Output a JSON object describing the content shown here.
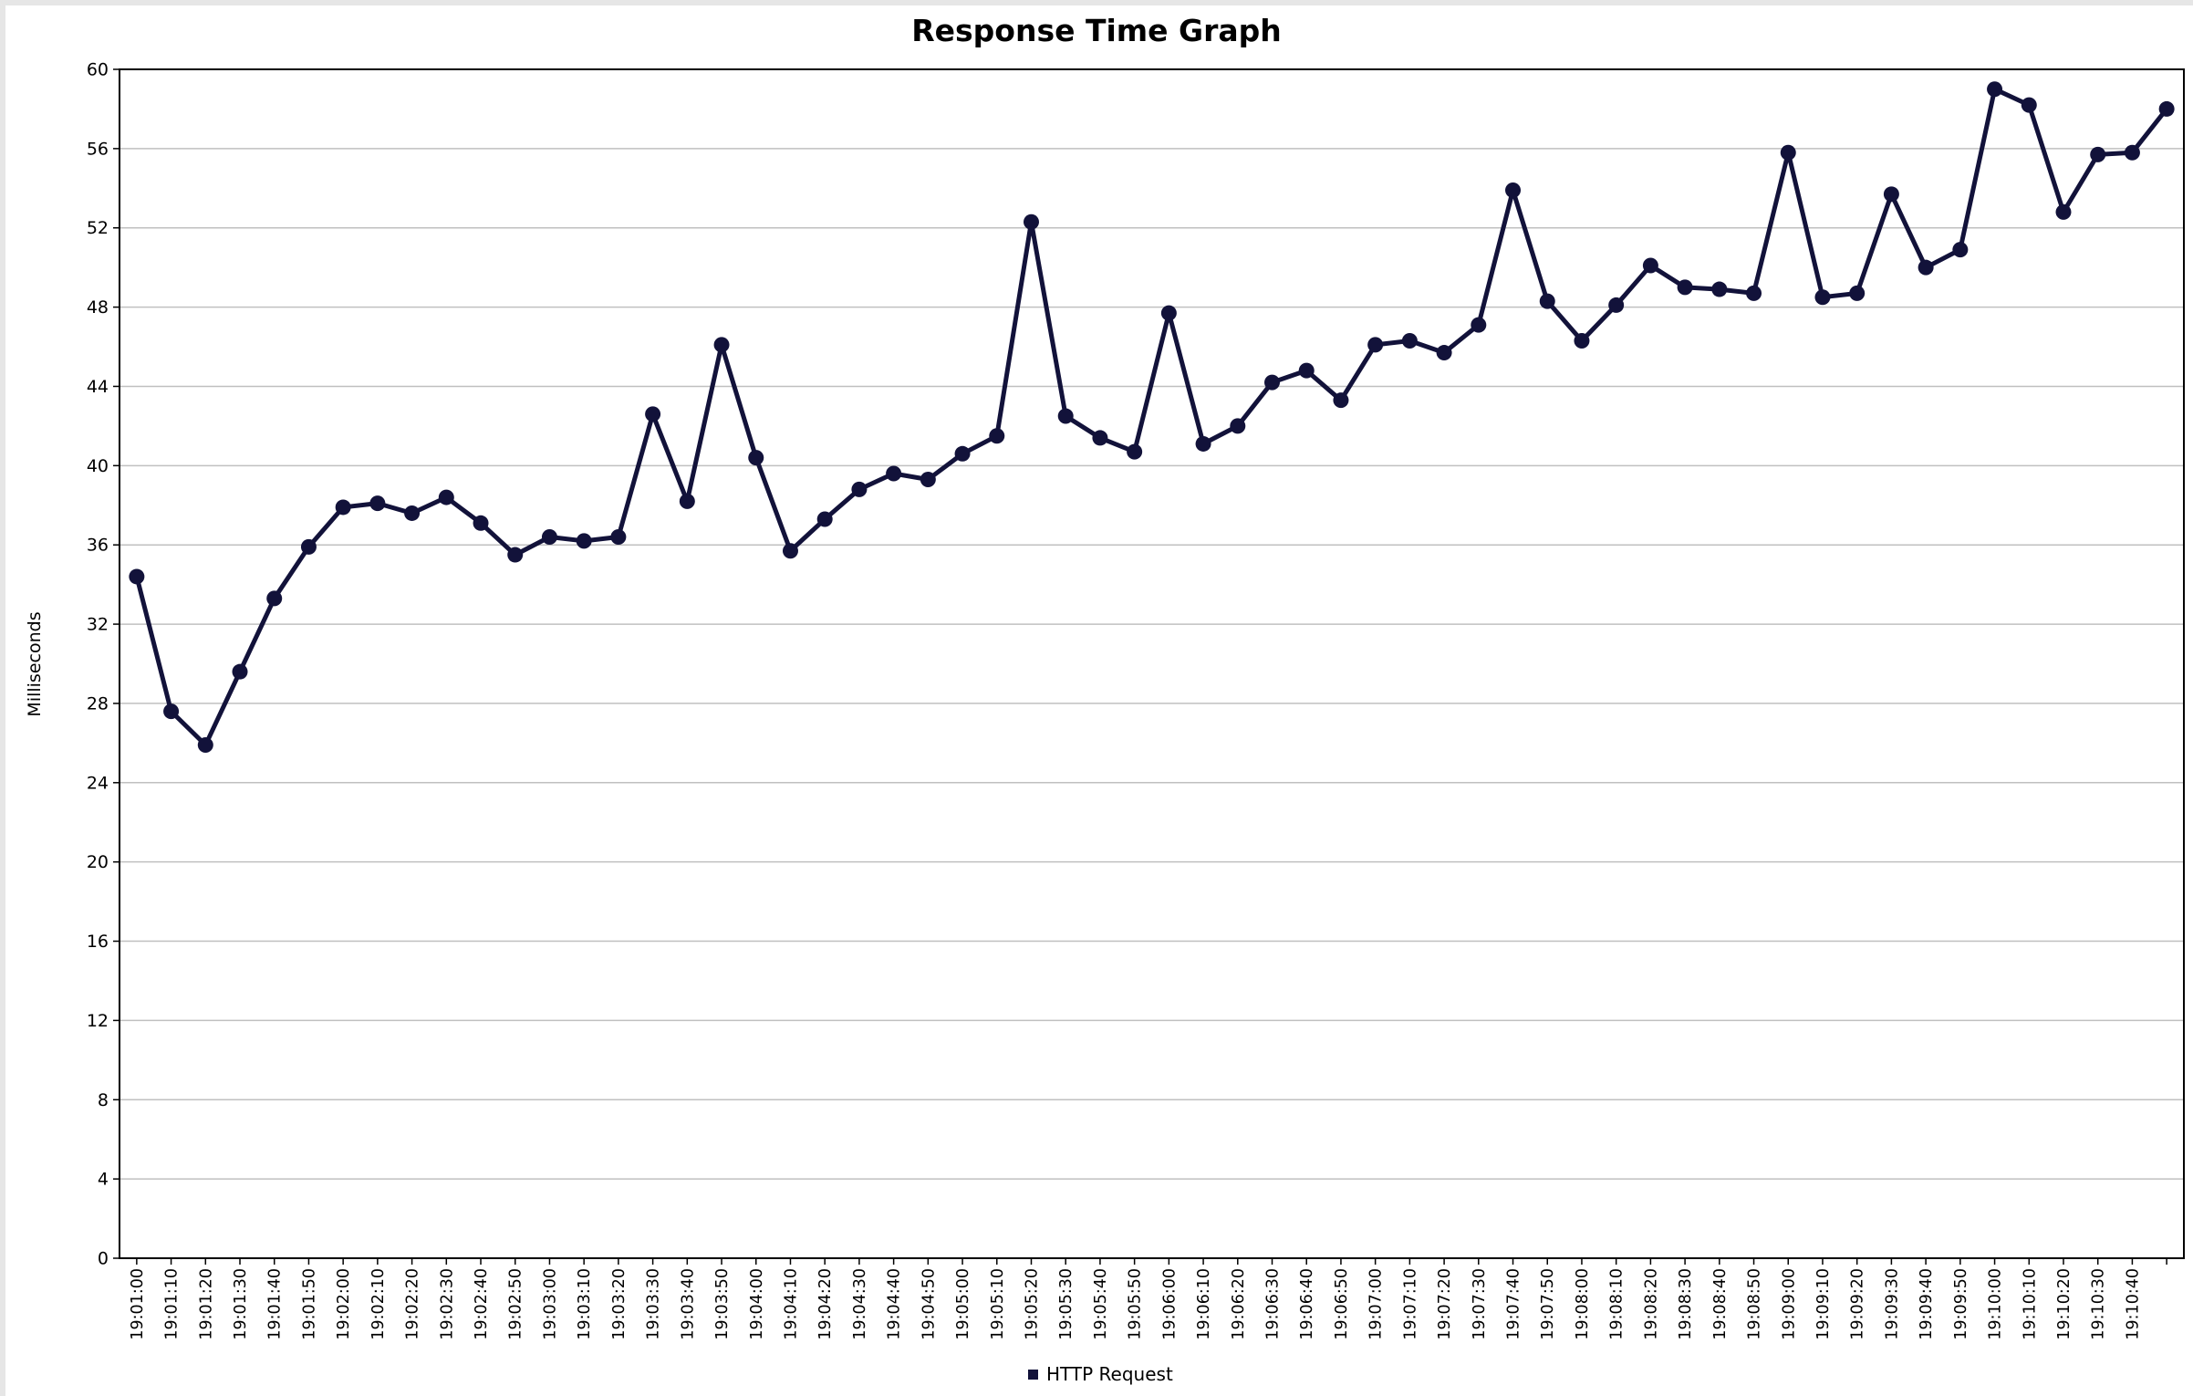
{
  "chart_data": {
    "type": "line",
    "title": "Response Time Graph",
    "xlabel": "",
    "ylabel": "Milliseconds",
    "ylim": [
      0,
      60
    ],
    "y_ticks": [
      0,
      4,
      8,
      12,
      16,
      20,
      24,
      28,
      32,
      36,
      40,
      44,
      48,
      52,
      56,
      60
    ],
    "grid": true,
    "legend_position": "bottom",
    "line_color": "#12123a",
    "categories": [
      "19:01:00",
      "19:01:10",
      "19:01:20",
      "19:01:30",
      "19:01:40",
      "19:01:50",
      "19:02:00",
      "19:02:10",
      "19:02:20",
      "19:02:30",
      "19:02:40",
      "19:02:50",
      "19:03:00",
      "19:03:10",
      "19:03:20",
      "19:03:30",
      "19:03:40",
      "19:03:50",
      "19:04:00",
      "19:04:10",
      "19:04:20",
      "19:04:30",
      "19:04:40",
      "19:04:50",
      "19:05:00",
      "19:05:10",
      "19:05:20",
      "19:05:30",
      "19:05:40",
      "19:05:50",
      "19:06:00",
      "19:06:10",
      "19:06:20",
      "19:06:30",
      "19:06:40",
      "19:06:50",
      "19:07:00",
      "19:07:10",
      "19:07:20",
      "19:07:30",
      "19:07:40",
      "19:07:50",
      "19:08:00",
      "19:08:10",
      "19:08:20",
      "19:08:30",
      "19:08:40",
      "19:08:50",
      "19:09:00",
      "19:09:10",
      "19:09:20",
      "19:09:30",
      "19:09:40",
      "19:09:50",
      "19:10:00",
      "19:10:10",
      "19:10:20",
      "19:10:30",
      "19:10:40",
      ""
    ],
    "series": [
      {
        "name": "HTTP Request",
        "values": [
          34.4,
          27.6,
          25.9,
          29.6,
          33.3,
          35.9,
          37.9,
          38.1,
          37.6,
          38.4,
          37.1,
          35.5,
          36.4,
          36.2,
          36.4,
          42.6,
          38.2,
          46.1,
          40.4,
          35.7,
          37.3,
          38.8,
          39.6,
          39.3,
          40.6,
          41.5,
          52.3,
          42.5,
          41.4,
          40.7,
          47.7,
          41.1,
          42.0,
          44.2,
          44.8,
          43.3,
          46.1,
          46.3,
          45.7,
          47.1,
          53.9,
          48.3,
          46.3,
          48.1,
          50.1,
          49.0,
          48.9,
          48.7,
          55.8,
          48.5,
          48.7,
          53.7,
          50.0,
          50.9,
          59.0,
          58.2,
          52.8,
          55.7,
          55.8,
          58.0
        ]
      }
    ]
  }
}
